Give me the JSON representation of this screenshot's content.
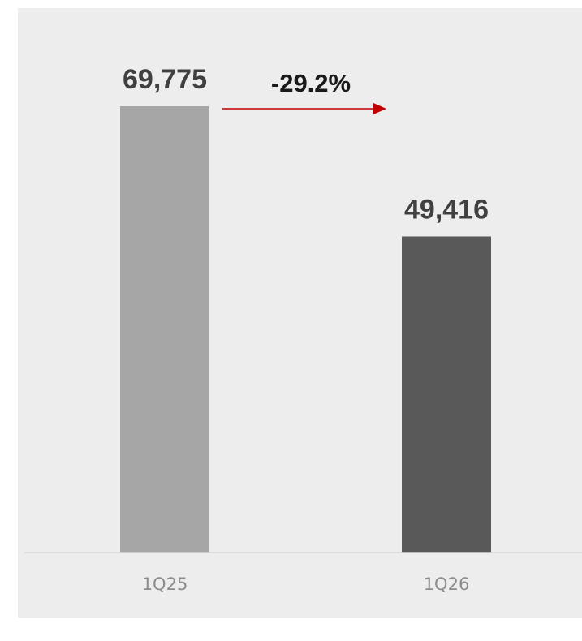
{
  "chart_data": {
    "type": "bar",
    "categories": [
      "1Q25",
      "1Q26"
    ],
    "values": [
      69775,
      49416
    ],
    "value_labels": [
      "69,775",
      "49,416"
    ],
    "change_label": "-29.2%",
    "ylim": [
      0,
      75000
    ],
    "grid": false,
    "legend": "none",
    "colors": {
      "bars": [
        "#a6a6a6",
        "#595959"
      ],
      "arrow": "#c00000",
      "background": "#ededed",
      "baseline": "#d9d9d9"
    }
  }
}
